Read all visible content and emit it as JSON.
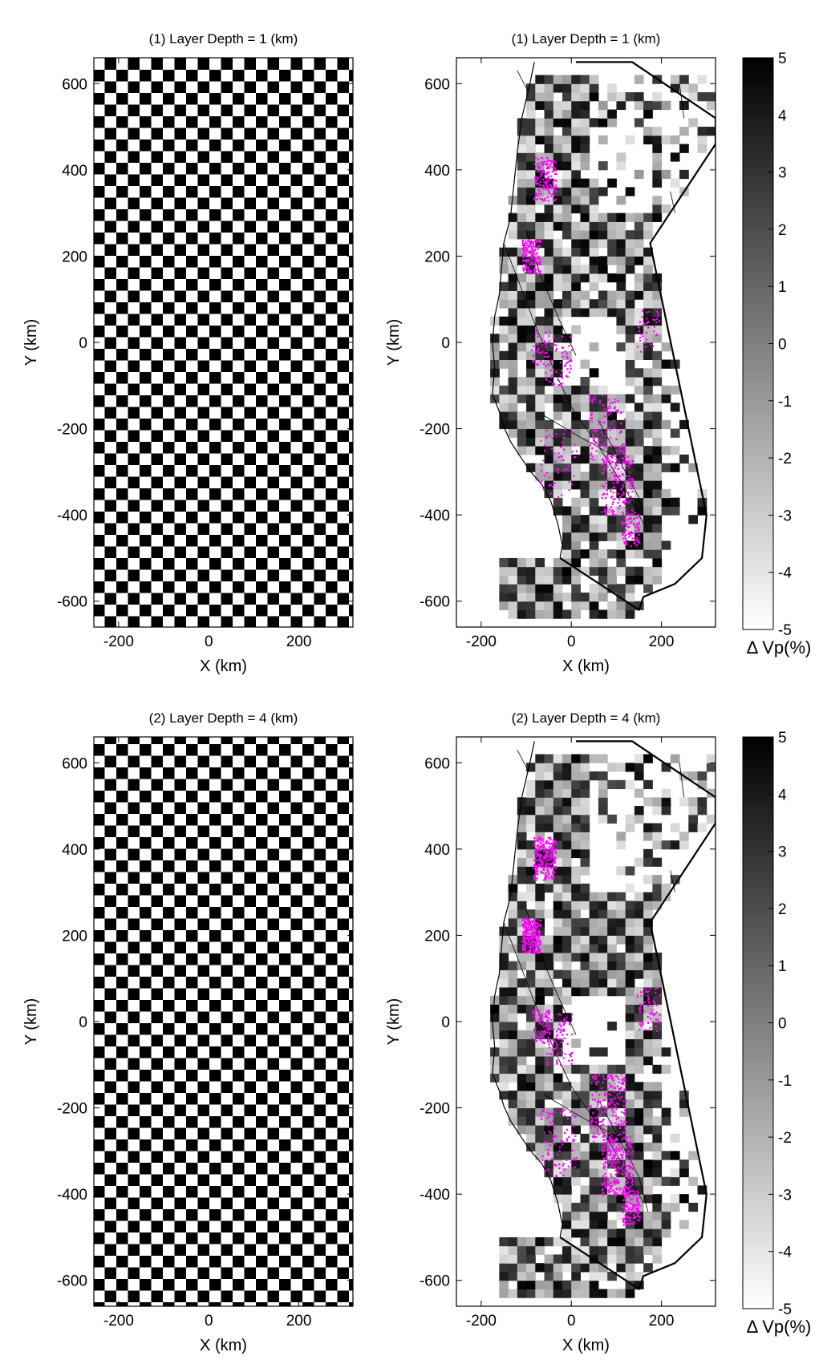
{
  "figure": {
    "background": "#ffffff",
    "event_color": "#ff00ff",
    "fault_color": "#000000"
  },
  "chart_data": [
    {
      "type": "heatmap",
      "panel": "input-model-layer-1",
      "title": "(1) Layer Depth = 1 (km)",
      "xlabel": "X (km)",
      "ylabel": "Y (km)",
      "xlim": [
        -255,
        320
      ],
      "ylim": [
        -660,
        660
      ],
      "xticks": [
        -200,
        0,
        200
      ],
      "yticks": [
        600,
        400,
        200,
        0,
        -200,
        -400,
        -600
      ],
      "pattern": "checkerboard",
      "cell_size_km": 20,
      "values": [
        5,
        -5
      ]
    },
    {
      "type": "heatmap",
      "panel": "recovered-model-layer-1",
      "title": "(1) Layer Depth = 1 (km)",
      "xlabel": "X (km)",
      "ylabel": "Y (km)",
      "xlim": [
        -255,
        320
      ],
      "ylim": [
        -660,
        660
      ],
      "xticks": [
        -200,
        0,
        200
      ],
      "yticks": [
        600,
        400,
        200,
        0,
        -200,
        -400,
        -600
      ],
      "clim": [
        -5,
        5
      ],
      "colormap": "gray-reversed",
      "overlays": [
        "coastline",
        "faults",
        "model-boundary",
        "earthquakes"
      ]
    },
    {
      "type": "heatmap",
      "panel": "input-model-layer-2",
      "title": "(2) Layer Depth = 4 (km)",
      "xlabel": "X (km)",
      "ylabel": "Y (km)",
      "xlim": [
        -255,
        320
      ],
      "ylim": [
        -660,
        660
      ],
      "xticks": [
        -200,
        0,
        200
      ],
      "yticks": [
        600,
        400,
        200,
        0,
        -200,
        -400,
        -600
      ],
      "pattern": "checkerboard",
      "cell_size_km": 20,
      "values": [
        5,
        -5
      ]
    },
    {
      "type": "heatmap",
      "panel": "recovered-model-layer-2",
      "title": "(2) Layer Depth = 4 (km)",
      "xlabel": "X (km)",
      "ylabel": "Y (km)",
      "xlim": [
        -255,
        320
      ],
      "ylim": [
        -660,
        660
      ],
      "xticks": [
        -200,
        0,
        200
      ],
      "yticks": [
        600,
        400,
        200,
        0,
        -200,
        -400,
        -600
      ],
      "clim": [
        -5,
        5
      ],
      "colormap": "gray-reversed",
      "overlays": [
        "coastline",
        "faults",
        "model-boundary",
        "earthquakes"
      ]
    }
  ],
  "colorbars": [
    {
      "label": "Δ Vp(%)",
      "ticks": [
        5,
        4,
        3,
        2,
        1,
        0,
        -1,
        -2,
        -3,
        -4,
        -5
      ],
      "range": [
        -5,
        5
      ]
    },
    {
      "label": "Δ Vp(%)",
      "ticks": [
        5,
        4,
        3,
        2,
        1,
        0,
        -1,
        -2,
        -3,
        -4,
        -5
      ],
      "range": [
        -5,
        5
      ]
    }
  ]
}
